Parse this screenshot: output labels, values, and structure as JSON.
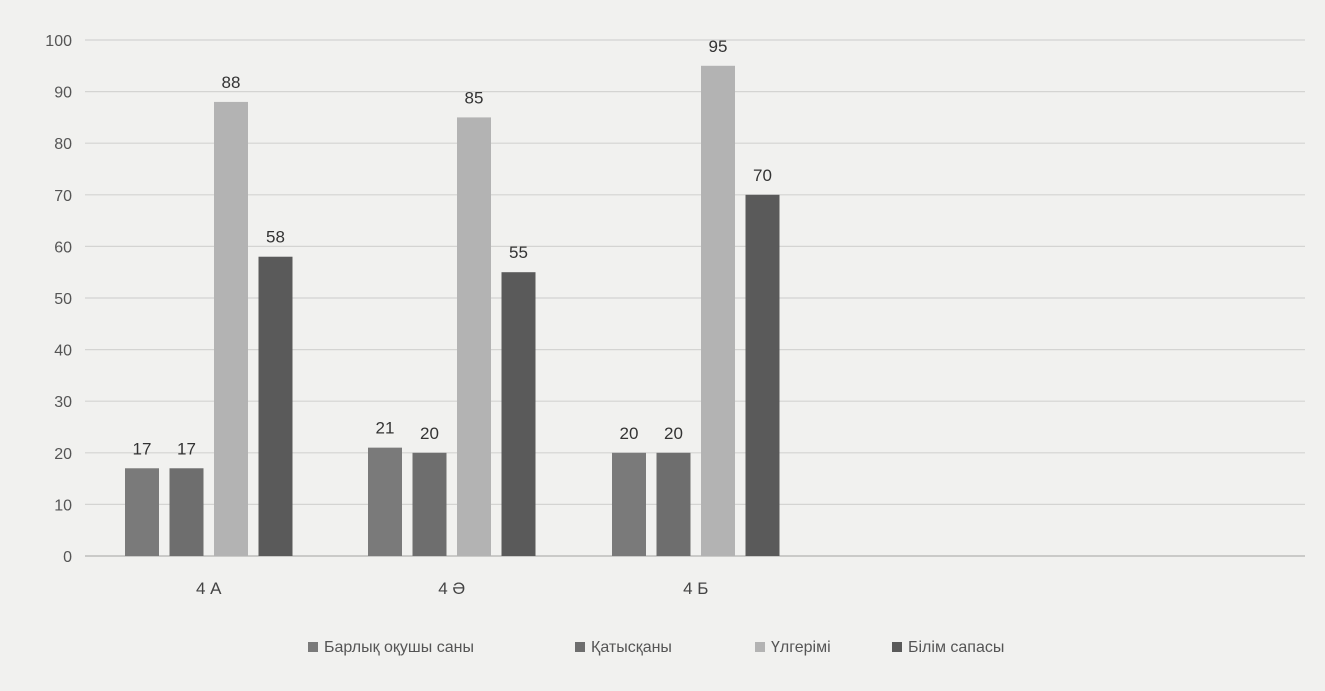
{
  "chart_data": {
    "type": "bar",
    "categories": [
      "4 А",
      "4 Ә",
      "4 Б"
    ],
    "series": [
      {
        "name": "Барлық оқушы саны",
        "values": [
          17,
          21,
          20
        ],
        "color": "#7a7a7a"
      },
      {
        "name": "Қатысқаны",
        "values": [
          17,
          20,
          20
        ],
        "color": "#6e6e6e"
      },
      {
        "name": "Үлгерімі",
        "values": [
          88,
          85,
          95
        ],
        "color": "#b3b3b3"
      },
      {
        "name": "Білім сапасы",
        "values": [
          58,
          55,
          70
        ],
        "color": "#5a5a5a"
      }
    ],
    "ylim": [
      0,
      100
    ],
    "yticks": [
      0,
      10,
      20,
      30,
      40,
      50,
      60,
      70,
      80,
      90,
      100
    ],
    "grid": true,
    "legend_position": "bottom",
    "title": "",
    "xlabel": "",
    "ylabel": ""
  }
}
